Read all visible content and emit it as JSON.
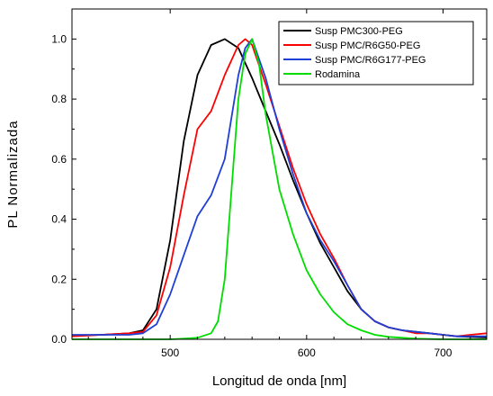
{
  "chart_data": {
    "type": "line",
    "xlabel": "Longitud de onda [nm]",
    "ylabel": "PL  Normalizada",
    "xlim": [
      428,
      732
    ],
    "ylim": [
      0.0,
      1.1
    ],
    "x_ticks": [
      500,
      600,
      700
    ],
    "y_ticks": [
      0.0,
      0.2,
      0.4,
      0.6,
      0.8,
      1.0
    ],
    "y_tick_labels": [
      "0.0",
      "0.2",
      "0.4",
      "0.6",
      "0.8",
      "1.0"
    ],
    "x_tick_labels": [
      "500",
      "600",
      "700"
    ],
    "grid": false,
    "legend_position": "top-right",
    "series": [
      {
        "name": "Susp PMC300-PEG",
        "color": "#000000",
        "x": [
          428,
          450,
          470,
          480,
          490,
          500,
          510,
          520,
          530,
          540,
          550,
          560,
          570,
          580,
          590,
          600,
          610,
          620,
          630,
          640,
          650,
          660,
          670,
          680,
          690,
          700,
          710,
          720,
          732
        ],
        "y": [
          0.012,
          0.015,
          0.02,
          0.03,
          0.1,
          0.33,
          0.66,
          0.88,
          0.98,
          1.0,
          0.97,
          0.87,
          0.76,
          0.65,
          0.53,
          0.42,
          0.32,
          0.24,
          0.16,
          0.1,
          0.06,
          0.04,
          0.03,
          0.025,
          0.02,
          0.015,
          0.01,
          0.008,
          0.006
        ]
      },
      {
        "name": "Susp PMC/R6G50-PEG",
        "color": "#ff0000",
        "x": [
          428,
          450,
          470,
          480,
          490,
          500,
          510,
          520,
          530,
          540,
          550,
          555,
          560,
          570,
          580,
          590,
          600,
          610,
          620,
          630,
          640,
          650,
          660,
          670,
          680,
          690,
          700,
          710,
          720,
          732
        ],
        "y": [
          0.01,
          0.015,
          0.02,
          0.025,
          0.08,
          0.24,
          0.48,
          0.7,
          0.76,
          0.88,
          0.98,
          1.0,
          0.98,
          0.85,
          0.71,
          0.57,
          0.45,
          0.35,
          0.27,
          0.18,
          0.1,
          0.06,
          0.04,
          0.03,
          0.02,
          0.02,
          0.015,
          0.01,
          0.015,
          0.02
        ]
      },
      {
        "name": "Susp PMC/R6G177-PEG",
        "color": "#1f3fd6",
        "x": [
          428,
          450,
          470,
          480,
          490,
          500,
          510,
          520,
          530,
          540,
          550,
          555,
          560,
          570,
          580,
          590,
          600,
          610,
          620,
          630,
          640,
          650,
          660,
          670,
          680,
          690,
          700,
          710,
          720,
          732
        ],
        "y": [
          0.015,
          0.015,
          0.015,
          0.02,
          0.05,
          0.15,
          0.28,
          0.41,
          0.48,
          0.6,
          0.88,
          0.97,
          1.0,
          0.87,
          0.7,
          0.55,
          0.42,
          0.33,
          0.26,
          0.18,
          0.1,
          0.06,
          0.04,
          0.03,
          0.025,
          0.02,
          0.015,
          0.01,
          0.01,
          0.01
        ]
      },
      {
        "name": "Rodamina",
        "color": "#00dd00",
        "x": [
          428,
          480,
          500,
          510,
          520,
          530,
          535,
          540,
          545,
          550,
          555,
          560,
          565,
          570,
          580,
          590,
          600,
          610,
          620,
          630,
          640,
          650,
          660,
          670,
          680,
          690,
          700,
          710,
          720,
          732
        ],
        "y": [
          0.0,
          0.0,
          0.0,
          0.002,
          0.005,
          0.02,
          0.06,
          0.2,
          0.5,
          0.8,
          0.95,
          1.0,
          0.92,
          0.75,
          0.5,
          0.35,
          0.23,
          0.15,
          0.09,
          0.05,
          0.03,
          0.015,
          0.008,
          0.005,
          0.002,
          0.001,
          0.0,
          0.0,
          0.0,
          0.0
        ]
      }
    ]
  }
}
